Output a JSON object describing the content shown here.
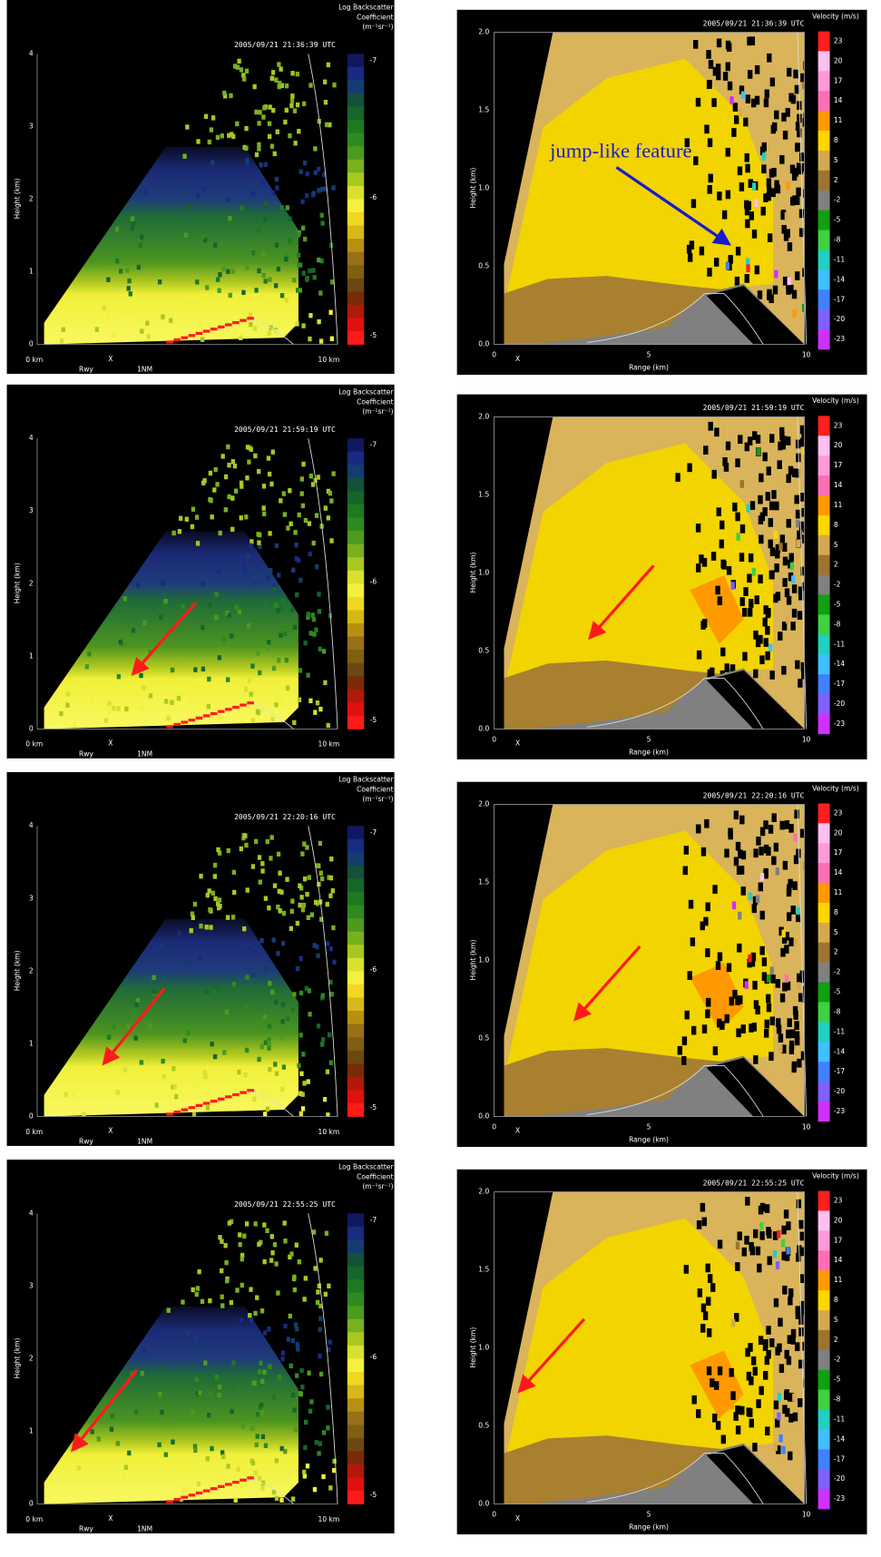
{
  "left_common": {
    "colorbar_title": [
      "Log Backscatter",
      "Coefficient",
      "(m⁻¹sr⁻¹)"
    ],
    "y_axis_label": "Height (km)",
    "y_ticks": [
      "0",
      "1",
      "2",
      "3",
      "4"
    ],
    "x_ticks": [
      "0 km",
      "10 km"
    ],
    "x_markers": [
      "Rwy",
      "X",
      "1NM"
    ],
    "colorbar_ticks": [
      "-7",
      "-6",
      "-5"
    ]
  },
  "right_common": {
    "colorbar_title": "Velocity (m/s)",
    "y_axis_label": "Height (km)",
    "x_axis_label": "Range (km)",
    "y_ticks": [
      "0.0",
      "0.5",
      "1.0",
      "1.5",
      "2.0"
    ],
    "x_ticks": [
      "0",
      "5",
      "10"
    ],
    "x_marker": "X",
    "colorbar_ticks": [
      "23",
      "20",
      "17",
      "14",
      "11",
      "8",
      "5",
      "2",
      "-2",
      "-5",
      "-8",
      "-11",
      "-14",
      "-17",
      "-20",
      "-23"
    ]
  },
  "rows": [
    {
      "timestamp": "2005/09/21 21:36:39 UTC"
    },
    {
      "timestamp": "2005/09/21 21:59:19 UTC"
    },
    {
      "timestamp": "2005/09/21 22:20:16 UTC"
    },
    {
      "timestamp": "2005/09/21 22:55:25 UTC"
    }
  ],
  "annotation": "jump-like feature"
}
